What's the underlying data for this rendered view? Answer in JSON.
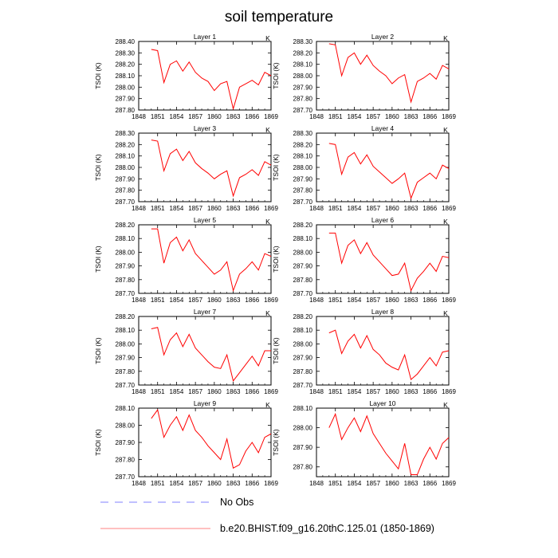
{
  "page_title": "soil temperature",
  "legend": {
    "entries": [
      {
        "label": "No Obs",
        "style": "dashed",
        "color": "#8080ff"
      },
      {
        "label": "b.e20.BHIST.f09_g16.20thC.125.01 (1850-1869)",
        "style": "solid",
        "color": "#ff8080"
      }
    ]
  },
  "colors": {
    "series": "#ff0000",
    "axis": "#000000"
  },
  "chart_data": [
    {
      "type": "line",
      "title": "Layer 1",
      "units": "K",
      "ylabel": "TSOI  (K)",
      "xlim": [
        1848,
        1869
      ],
      "ylim": [
        287.8,
        288.4
      ],
      "xticks": [
        "1848",
        "1851",
        "1854",
        "1857",
        "1860",
        "1863",
        "1866",
        "1869"
      ],
      "yticks": [
        "287.80",
        "287.90",
        "288.00",
        "288.10",
        "288.20",
        "288.30",
        "288.40"
      ],
      "x": [
        1850,
        1851,
        1852,
        1853,
        1854,
        1855,
        1856,
        1857,
        1858,
        1859,
        1860,
        1861,
        1862,
        1863,
        1864,
        1865,
        1866,
        1867,
        1868,
        1869
      ],
      "series": [
        {
          "values": [
            288.33,
            288.32,
            288.04,
            288.2,
            288.23,
            288.14,
            288.22,
            288.13,
            288.08,
            288.05,
            287.97,
            288.03,
            288.05,
            287.81,
            288.0,
            288.03,
            288.06,
            288.02,
            288.13,
            288.1
          ]
        }
      ]
    },
    {
      "type": "line",
      "title": "Layer 2",
      "units": "K",
      "ylabel": "TSOI  (K)",
      "xlim": [
        1848,
        1869
      ],
      "ylim": [
        287.7,
        288.3
      ],
      "xticks": [
        "1848",
        "1851",
        "1854",
        "1857",
        "1860",
        "1863",
        "1866",
        "1869"
      ],
      "yticks": [
        "287.70",
        "287.80",
        "287.90",
        "288.00",
        "288.10",
        "288.20",
        "288.30"
      ],
      "x": [
        1850,
        1851,
        1852,
        1853,
        1854,
        1855,
        1856,
        1857,
        1858,
        1859,
        1860,
        1861,
        1862,
        1863,
        1864,
        1865,
        1866,
        1867,
        1868,
        1869
      ],
      "series": [
        {
          "values": [
            288.28,
            288.27,
            288.0,
            288.16,
            288.2,
            288.1,
            288.18,
            288.09,
            288.04,
            288.0,
            287.93,
            287.98,
            288.01,
            287.77,
            287.95,
            287.98,
            288.02,
            287.97,
            288.09,
            288.06
          ]
        }
      ]
    },
    {
      "type": "line",
      "title": "Layer 3",
      "units": "K",
      "ylabel": "TSOI  (K)",
      "xlim": [
        1848,
        1869
      ],
      "ylim": [
        287.7,
        288.3
      ],
      "xticks": [
        "1848",
        "1851",
        "1854",
        "1857",
        "1860",
        "1863",
        "1866",
        "1869"
      ],
      "yticks": [
        "287.70",
        "287.80",
        "287.90",
        "288.00",
        "288.10",
        "288.20",
        "288.30"
      ],
      "x": [
        1850,
        1851,
        1852,
        1853,
        1854,
        1855,
        1856,
        1857,
        1858,
        1859,
        1860,
        1861,
        1862,
        1863,
        1864,
        1865,
        1866,
        1867,
        1868,
        1869
      ],
      "series": [
        {
          "values": [
            288.24,
            288.23,
            287.97,
            288.12,
            288.16,
            288.06,
            288.14,
            288.04,
            287.99,
            287.95,
            287.9,
            287.94,
            287.97,
            287.75,
            287.91,
            287.94,
            287.98,
            287.93,
            288.05,
            288.02
          ]
        }
      ]
    },
    {
      "type": "line",
      "title": "Layer 4",
      "units": "K",
      "ylabel": "TSOI  (K)",
      "xlim": [
        1848,
        1869
      ],
      "ylim": [
        287.7,
        288.3
      ],
      "xticks": [
        "1848",
        "1851",
        "1854",
        "1857",
        "1860",
        "1863",
        "1866",
        "1869"
      ],
      "yticks": [
        "287.70",
        "287.80",
        "287.90",
        "288.00",
        "288.10",
        "288.20",
        "288.30"
      ],
      "x": [
        1850,
        1851,
        1852,
        1853,
        1854,
        1855,
        1856,
        1857,
        1858,
        1859,
        1860,
        1861,
        1862,
        1863,
        1864,
        1865,
        1866,
        1867,
        1868,
        1869
      ],
      "series": [
        {
          "values": [
            288.21,
            288.2,
            287.94,
            288.09,
            288.13,
            288.03,
            288.11,
            288.01,
            287.96,
            287.91,
            287.86,
            287.9,
            287.95,
            287.73,
            287.87,
            287.91,
            287.95,
            287.9,
            288.02,
            287.99
          ]
        }
      ]
    },
    {
      "type": "line",
      "title": "Layer 5",
      "units": "K",
      "ylabel": "TSOI  (K)",
      "xlim": [
        1848,
        1869
      ],
      "ylim": [
        287.7,
        288.2
      ],
      "xticks": [
        "1848",
        "1851",
        "1854",
        "1857",
        "1860",
        "1863",
        "1866",
        "1869"
      ],
      "yticks": [
        "287.70",
        "287.80",
        "287.90",
        "288.00",
        "288.10",
        "288.20"
      ],
      "x": [
        1850,
        1851,
        1852,
        1853,
        1854,
        1855,
        1856,
        1857,
        1858,
        1859,
        1860,
        1861,
        1862,
        1863,
        1864,
        1865,
        1866,
        1867,
        1868,
        1869
      ],
      "series": [
        {
          "values": [
            288.17,
            288.17,
            287.92,
            288.07,
            288.11,
            288.01,
            288.09,
            287.99,
            287.94,
            287.89,
            287.84,
            287.87,
            287.93,
            287.72,
            287.84,
            287.88,
            287.93,
            287.87,
            287.99,
            287.97
          ]
        }
      ]
    },
    {
      "type": "line",
      "title": "Layer 6",
      "units": "K",
      "ylabel": "TSOI  (K)",
      "xlim": [
        1848,
        1869
      ],
      "ylim": [
        287.7,
        288.2
      ],
      "xticks": [
        "1848",
        "1851",
        "1854",
        "1857",
        "1860",
        "1863",
        "1866",
        "1869"
      ],
      "yticks": [
        "287.70",
        "287.80",
        "287.90",
        "288.00",
        "288.10",
        "288.20"
      ],
      "x": [
        1850,
        1851,
        1852,
        1853,
        1854,
        1855,
        1856,
        1857,
        1858,
        1859,
        1860,
        1861,
        1862,
        1863,
        1864,
        1865,
        1866,
        1867,
        1868,
        1869
      ],
      "series": [
        {
          "values": [
            288.14,
            288.14,
            287.92,
            288.05,
            288.09,
            287.99,
            288.07,
            287.98,
            287.93,
            287.88,
            287.83,
            287.84,
            287.92,
            287.72,
            287.81,
            287.86,
            287.92,
            287.86,
            287.97,
            287.96
          ]
        }
      ]
    },
    {
      "type": "line",
      "title": "Layer 7",
      "units": "K",
      "ylabel": "TSOI  (K)",
      "xlim": [
        1848,
        1869
      ],
      "ylim": [
        287.7,
        288.2
      ],
      "xticks": [
        "1848",
        "1851",
        "1854",
        "1857",
        "1860",
        "1863",
        "1866",
        "1869"
      ],
      "yticks": [
        "287.70",
        "287.80",
        "287.90",
        "288.00",
        "288.10",
        "288.20"
      ],
      "x": [
        1850,
        1851,
        1852,
        1853,
        1854,
        1855,
        1856,
        1857,
        1858,
        1859,
        1860,
        1861,
        1862,
        1863,
        1864,
        1865,
        1866,
        1867,
        1868,
        1869
      ],
      "series": [
        {
          "values": [
            288.11,
            288.12,
            287.92,
            288.03,
            288.08,
            287.98,
            288.07,
            287.97,
            287.92,
            287.87,
            287.83,
            287.82,
            287.92,
            287.73,
            287.79,
            287.85,
            287.91,
            287.84,
            287.95,
            287.95
          ]
        }
      ]
    },
    {
      "type": "line",
      "title": "Layer 8",
      "units": "K",
      "ylabel": "TSOI  (K)",
      "xlim": [
        1848,
        1869
      ],
      "ylim": [
        287.7,
        288.2
      ],
      "xticks": [
        "1848",
        "1851",
        "1854",
        "1857",
        "1860",
        "1863",
        "1866",
        "1869"
      ],
      "yticks": [
        "287.70",
        "287.80",
        "287.90",
        "288.00",
        "288.10",
        "288.20"
      ],
      "x": [
        1850,
        1851,
        1852,
        1853,
        1854,
        1855,
        1856,
        1857,
        1858,
        1859,
        1860,
        1861,
        1862,
        1863,
        1864,
        1865,
        1866,
        1867,
        1868,
        1869
      ],
      "series": [
        {
          "values": [
            288.08,
            288.1,
            287.93,
            288.02,
            288.07,
            287.97,
            288.06,
            287.96,
            287.92,
            287.86,
            287.83,
            287.81,
            287.92,
            287.74,
            287.78,
            287.84,
            287.9,
            287.84,
            287.94,
            287.95
          ]
        }
      ]
    },
    {
      "type": "line",
      "title": "Layer 9",
      "units": "K",
      "ylabel": "TSOI  (K)",
      "xlim": [
        1848,
        1869
      ],
      "ylim": [
        287.7,
        288.1
      ],
      "xticks": [
        "1848",
        "1851",
        "1854",
        "1857",
        "1860",
        "1863",
        "1866",
        "1869"
      ],
      "yticks": [
        "287.70",
        "287.80",
        "287.90",
        "288.00",
        "288.10"
      ],
      "x": [
        1850,
        1851,
        1852,
        1853,
        1854,
        1855,
        1856,
        1857,
        1858,
        1859,
        1860,
        1861,
        1862,
        1863,
        1864,
        1865,
        1866,
        1867,
        1868,
        1869
      ],
      "series": [
        {
          "values": [
            288.04,
            288.09,
            287.93,
            288.0,
            288.05,
            287.97,
            288.06,
            287.97,
            287.93,
            287.88,
            287.84,
            287.8,
            287.92,
            287.75,
            287.77,
            287.85,
            287.9,
            287.84,
            287.93,
            287.95
          ]
        }
      ]
    },
    {
      "type": "line",
      "title": "Layer 10",
      "units": "K",
      "ylabel": "TSOI  (K)",
      "xlim": [
        1848,
        1869
      ],
      "ylim": [
        287.75,
        288.1
      ],
      "xticks": [
        "1848",
        "1851",
        "1854",
        "1857",
        "1860",
        "1863",
        "1866",
        "1869"
      ],
      "yticks": [
        "287.80",
        "287.90",
        "288.00",
        "288.10"
      ],
      "x": [
        1850,
        1851,
        1852,
        1853,
        1854,
        1855,
        1856,
        1857,
        1858,
        1859,
        1860,
        1861,
        1862,
        1863,
        1864,
        1865,
        1866,
        1867,
        1868,
        1869
      ],
      "series": [
        {
          "values": [
            288.0,
            288.07,
            287.94,
            288.0,
            288.05,
            287.98,
            288.06,
            287.97,
            287.92,
            287.87,
            287.83,
            287.79,
            287.92,
            287.76,
            287.76,
            287.84,
            287.9,
            287.84,
            287.92,
            287.95
          ]
        }
      ]
    }
  ]
}
